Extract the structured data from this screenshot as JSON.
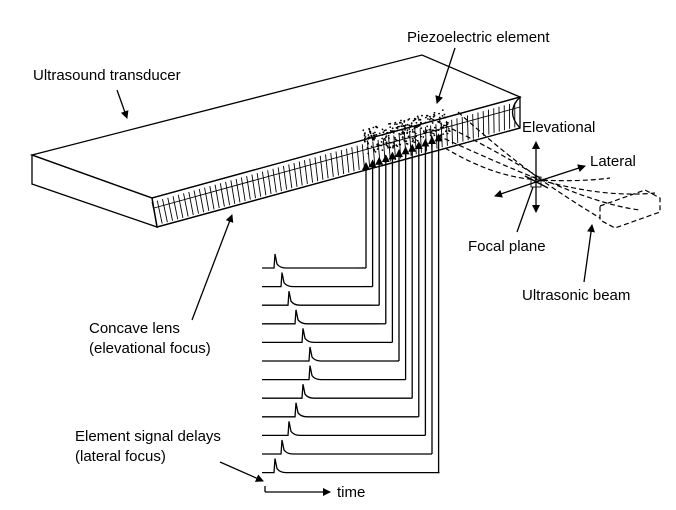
{
  "labels": {
    "transducer": "Ultrasound transducer",
    "piezo": "Piezoelectric element",
    "elevational": "Elevational",
    "lateral": "Lateral",
    "focal_plane": "Focal plane",
    "beam": "Ultrasonic beam",
    "lens_line1": "Concave lens",
    "lens_line2": "(elevational focus)",
    "delays_line1": "Element signal delays",
    "delays_line2": "(lateral focus)",
    "time": "time"
  },
  "element_signal_delays": {
    "channel_count": 12,
    "pulse_delay_order": [
      0,
      1,
      2,
      3,
      4,
      5,
      5,
      4,
      3,
      2,
      1,
      0
    ]
  }
}
